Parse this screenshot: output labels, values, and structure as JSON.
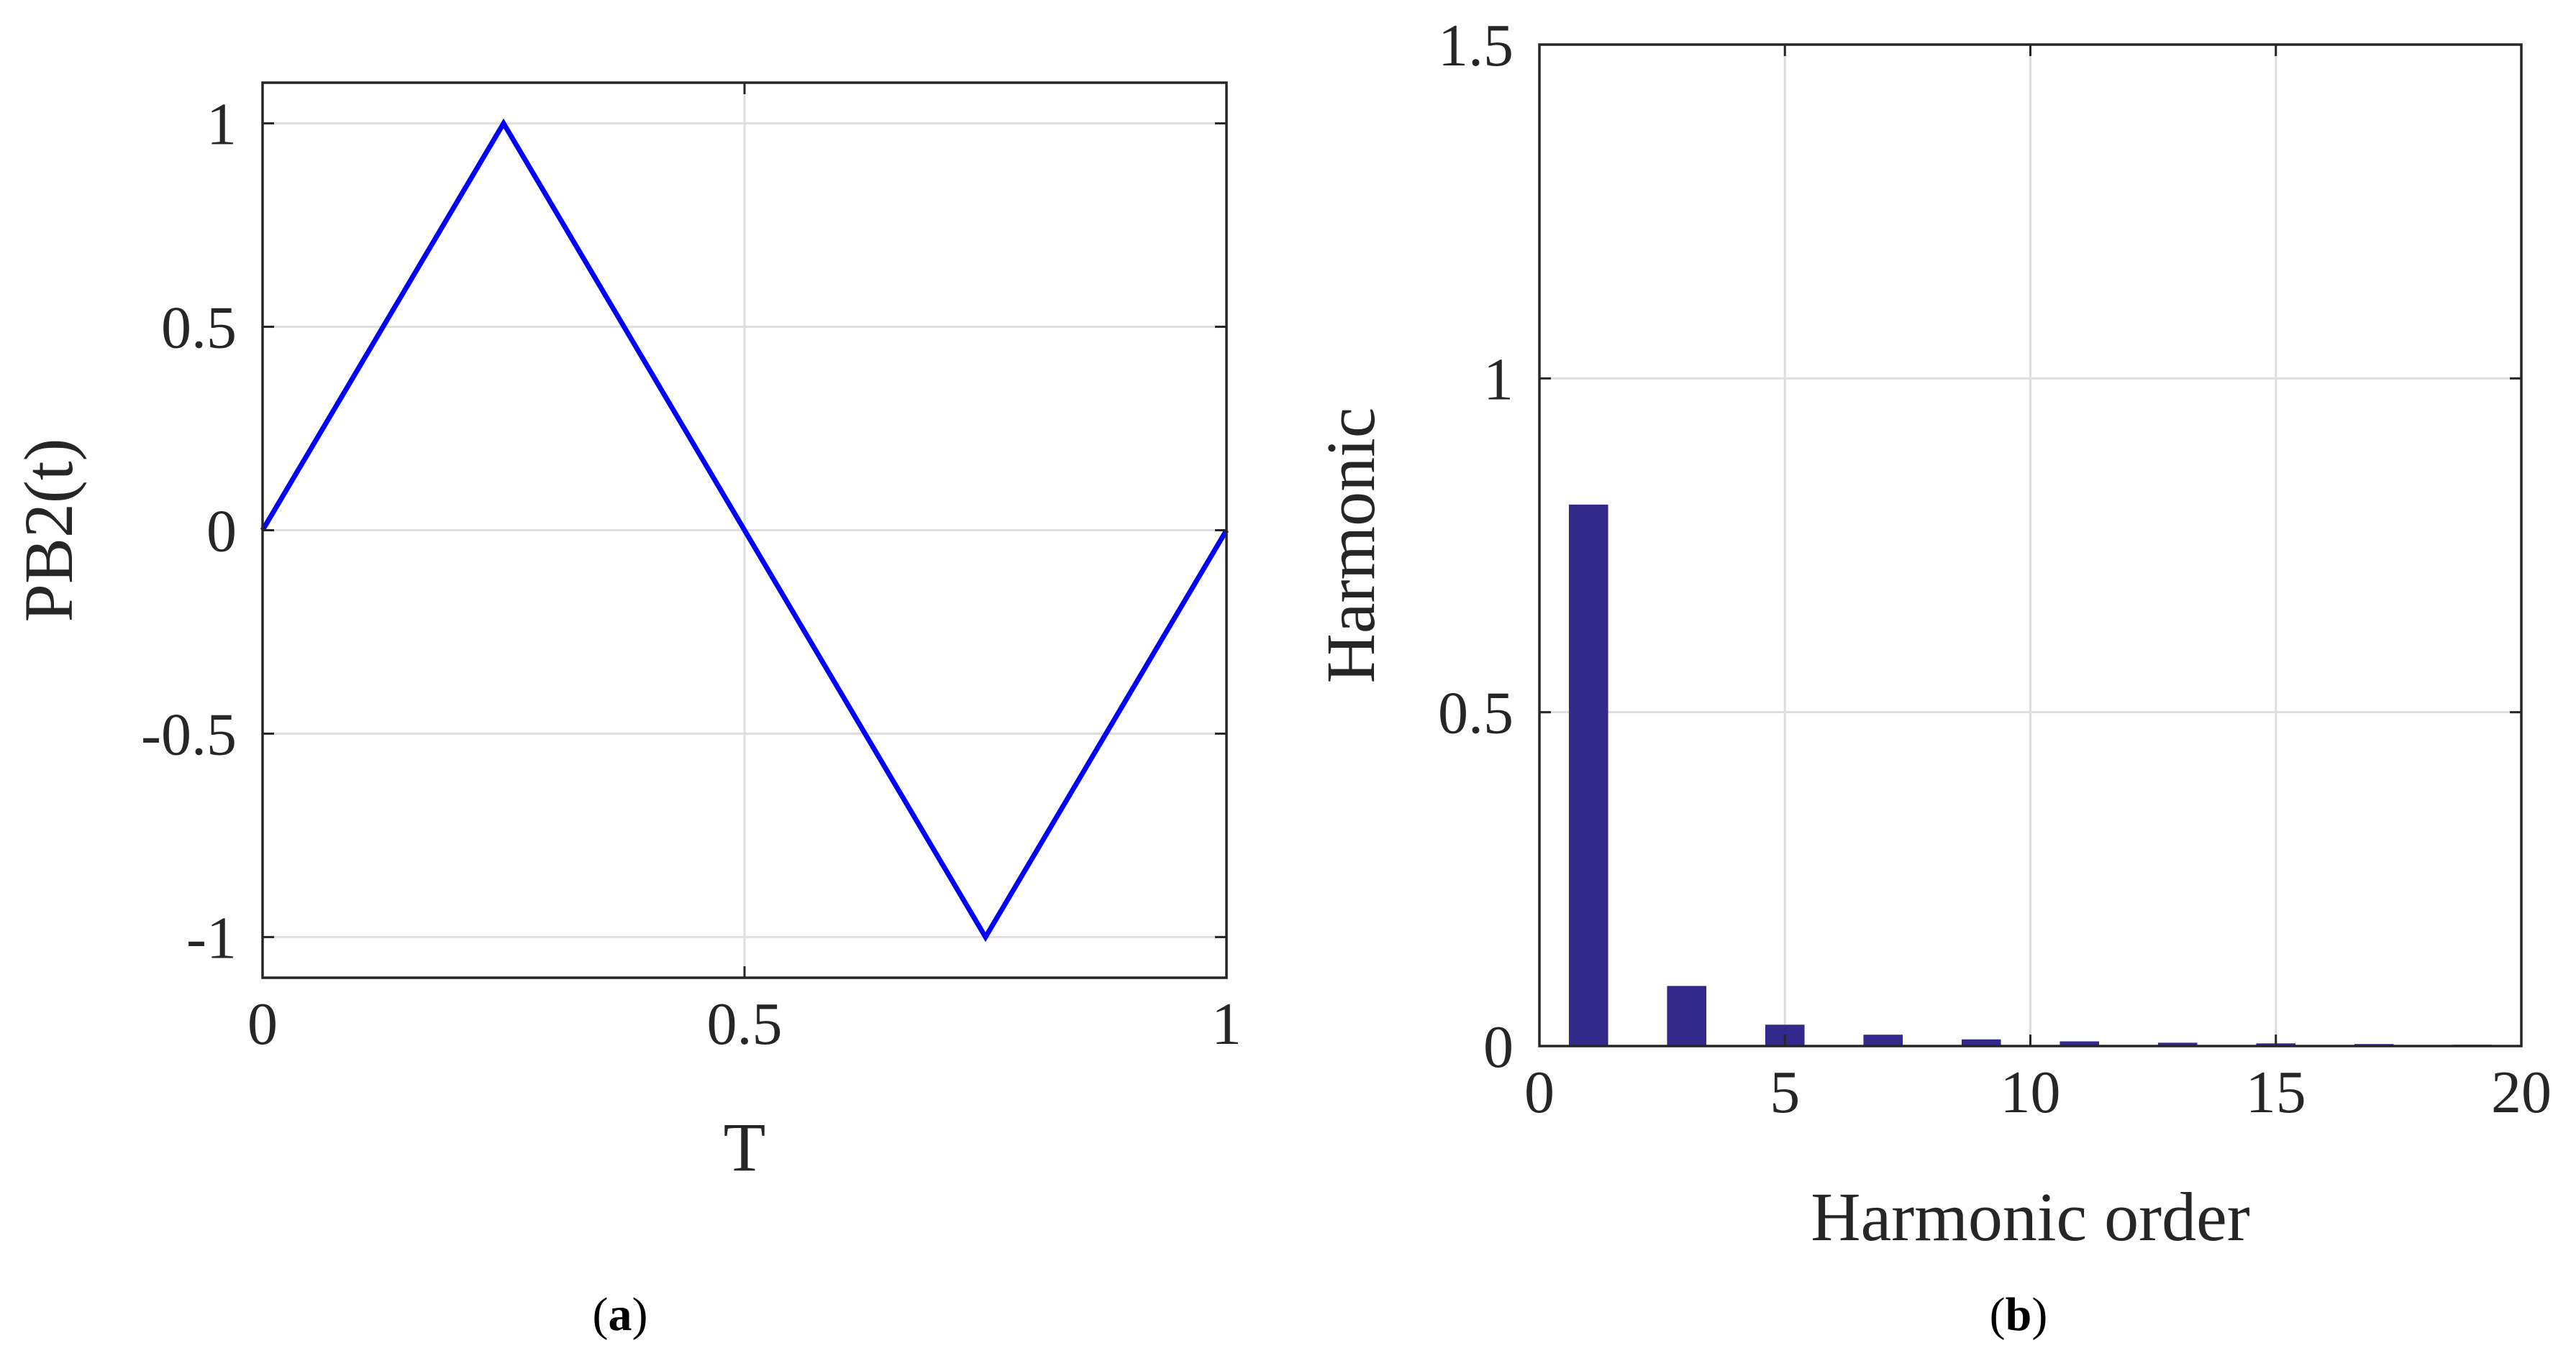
{
  "colors": {
    "line": "#0000ff",
    "bar": "#33298a",
    "grid": "#dedede",
    "axis": "#262626",
    "text": "#262626"
  },
  "panels": {
    "a": {
      "prefix": "(",
      "letter": "a",
      "suffix": ")"
    },
    "b": {
      "prefix": "(",
      "letter": "b",
      "suffix": ")"
    }
  },
  "chart_data": [
    {
      "id": "a",
      "type": "line",
      "title": "",
      "xlabel": "T",
      "ylabel": "PB2(t)",
      "xlim": [
        0,
        1
      ],
      "ylim": [
        -1.1,
        1.1
      ],
      "xticks": [
        0,
        0.5,
        1
      ],
      "xtick_labels": [
        "0",
        "0.5",
        "1"
      ],
      "yticks": [
        -1,
        -0.5,
        0,
        0.5,
        1
      ],
      "ytick_labels": [
        "-1",
        "-0.5",
        "0",
        "0.5",
        "1"
      ],
      "grid": true,
      "series": [
        {
          "name": "PB2(t)",
          "x": [
            0,
            0.25,
            0.75,
            1
          ],
          "y": [
            0,
            1,
            -1,
            0
          ]
        }
      ]
    },
    {
      "id": "b",
      "type": "bar",
      "title": "",
      "xlabel": "Harmonic order",
      "ylabel": "Harmonic",
      "xlim": [
        0,
        20
      ],
      "ylim": [
        0,
        1.5
      ],
      "xticks": [
        0,
        5,
        10,
        15,
        20
      ],
      "xtick_labels": [
        "0",
        "5",
        "10",
        "15",
        "20"
      ],
      "yticks": [
        0,
        0.5,
        1,
        1.5
      ],
      "ytick_labels": [
        "0",
        "0.5",
        "1",
        "1.5"
      ],
      "grid": true,
      "bar_width": 0.8,
      "categories": [
        1,
        3,
        5,
        7,
        9,
        11,
        13,
        15,
        17,
        19
      ],
      "values": [
        0.811,
        0.09,
        0.032,
        0.017,
        0.01,
        0.007,
        0.005,
        0.004,
        0.003,
        0.002
      ]
    }
  ]
}
